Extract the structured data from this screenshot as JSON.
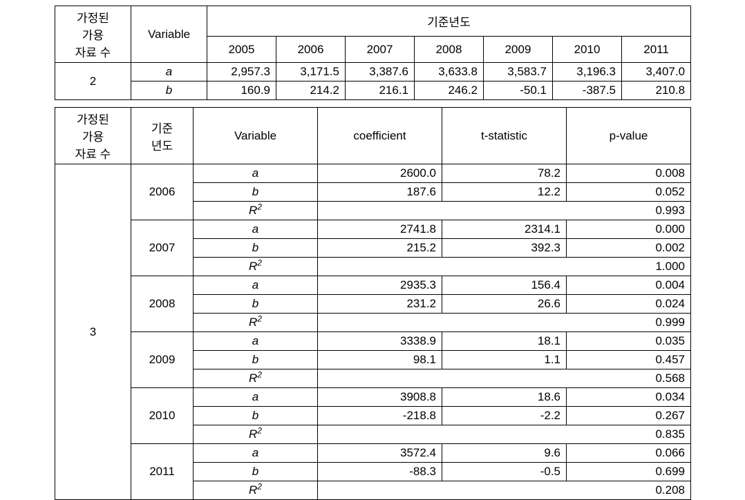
{
  "t1": {
    "h_assumed": "가정된\n가용\n자료 수",
    "h_variable": "Variable",
    "h_baseyear": "기준년도",
    "years": [
      "2005",
      "2006",
      "2007",
      "2008",
      "2009",
      "2010",
      "2011"
    ],
    "group_label": "2",
    "rows": [
      {
        "var": "a",
        "vals": [
          "2,957.3",
          "3,171.5",
          "3,387.6",
          "3,633.8",
          "3,583.7",
          "3,196.3",
          "3,407.0"
        ]
      },
      {
        "var": "b",
        "vals": [
          "160.9",
          "214.2",
          "216.1",
          "246.2",
          "-50.1",
          "-387.5",
          "210.8"
        ]
      }
    ]
  },
  "t2": {
    "h_assumed": "가정된\n가용\n자료 수",
    "h_baseyear": "기준\n년도",
    "h_variable": "Variable",
    "h_coef": "coefficient",
    "h_t": "t-statistic",
    "h_p": "p-value",
    "group_label": "3",
    "r2_label": "R",
    "blocks": [
      {
        "year": "2006",
        "a": {
          "coef": "2600.0",
          "t": "78.2",
          "p": "0.008"
        },
        "b": {
          "coef": "187.6",
          "t": "12.2",
          "p": "0.052"
        },
        "r2": "0.993"
      },
      {
        "year": "2007",
        "a": {
          "coef": "2741.8",
          "t": "2314.1",
          "p": "0.000"
        },
        "b": {
          "coef": "215.2",
          "t": "392.3",
          "p": "0.002"
        },
        "r2": "1.000"
      },
      {
        "year": "2008",
        "a": {
          "coef": "2935.3",
          "t": "156.4",
          "p": "0.004"
        },
        "b": {
          "coef": "231.2",
          "t": "26.6",
          "p": "0.024"
        },
        "r2": "0.999"
      },
      {
        "year": "2009",
        "a": {
          "coef": "3338.9",
          "t": "18.1",
          "p": "0.035"
        },
        "b": {
          "coef": "98.1",
          "t": "1.1",
          "p": "0.457"
        },
        "r2": "0.568"
      },
      {
        "year": "2010",
        "a": {
          "coef": "3908.8",
          "t": "18.6",
          "p": "0.034"
        },
        "b": {
          "coef": "-218.8",
          "t": "-2.2",
          "p": "0.267"
        },
        "r2": "0.835"
      },
      {
        "year": "2011",
        "a": {
          "coef": "3572.4",
          "t": "9.6",
          "p": "0.066"
        },
        "b": {
          "coef": "-88.3",
          "t": "-0.5",
          "p": "0.699"
        },
        "r2": "0.208"
      }
    ]
  }
}
